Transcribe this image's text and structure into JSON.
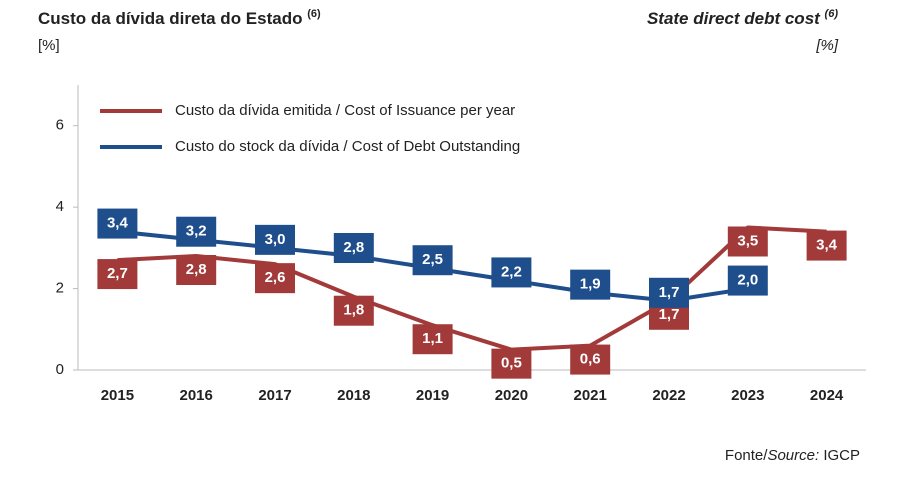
{
  "chart_data": {
    "type": "line",
    "title": "Custo da dívida direta do Estado",
    "title_note": "(6)",
    "title_en": "State direct debt cost",
    "title_en_note": "(6)",
    "unit_left": "[%]",
    "unit_right": "[%]",
    "source": [
      "Fonte/",
      "Source:",
      "IGCP"
    ],
    "categories": [
      "2015",
      "2016",
      "2017",
      "2018",
      "2019",
      "2020",
      "2021",
      "2022",
      "2023",
      "2024"
    ],
    "series": [
      {
        "name": "Custo da dívida emitida / Cost of Issuance per year",
        "color": "#a33a3a",
        "values": [
          2.7,
          2.8,
          2.6,
          1.8,
          1.1,
          0.5,
          0.6,
          1.7,
          3.5,
          3.4
        ],
        "value_labels": [
          "2,7",
          "2,8",
          "2,6",
          "1,8",
          "1,1",
          "0,5",
          "0,6",
          "1,7",
          "3,5",
          "3,4"
        ]
      },
      {
        "name": "Custo do stock da dívida / Cost of Debt Outstanding",
        "color": "#1f4e8c",
        "values": [
          3.4,
          3.2,
          3.0,
          2.8,
          2.5,
          2.2,
          1.9,
          1.7,
          2.0,
          null
        ],
        "value_labels": [
          "3,4",
          "3,2",
          "3,0",
          "2,8",
          "2,5",
          "2,2",
          "1,9",
          "1,7",
          "2,0",
          null
        ]
      }
    ],
    "ylim": [
      0,
      7
    ],
    "yticks": [
      0,
      2,
      4,
      6
    ],
    "grid": false
  }
}
